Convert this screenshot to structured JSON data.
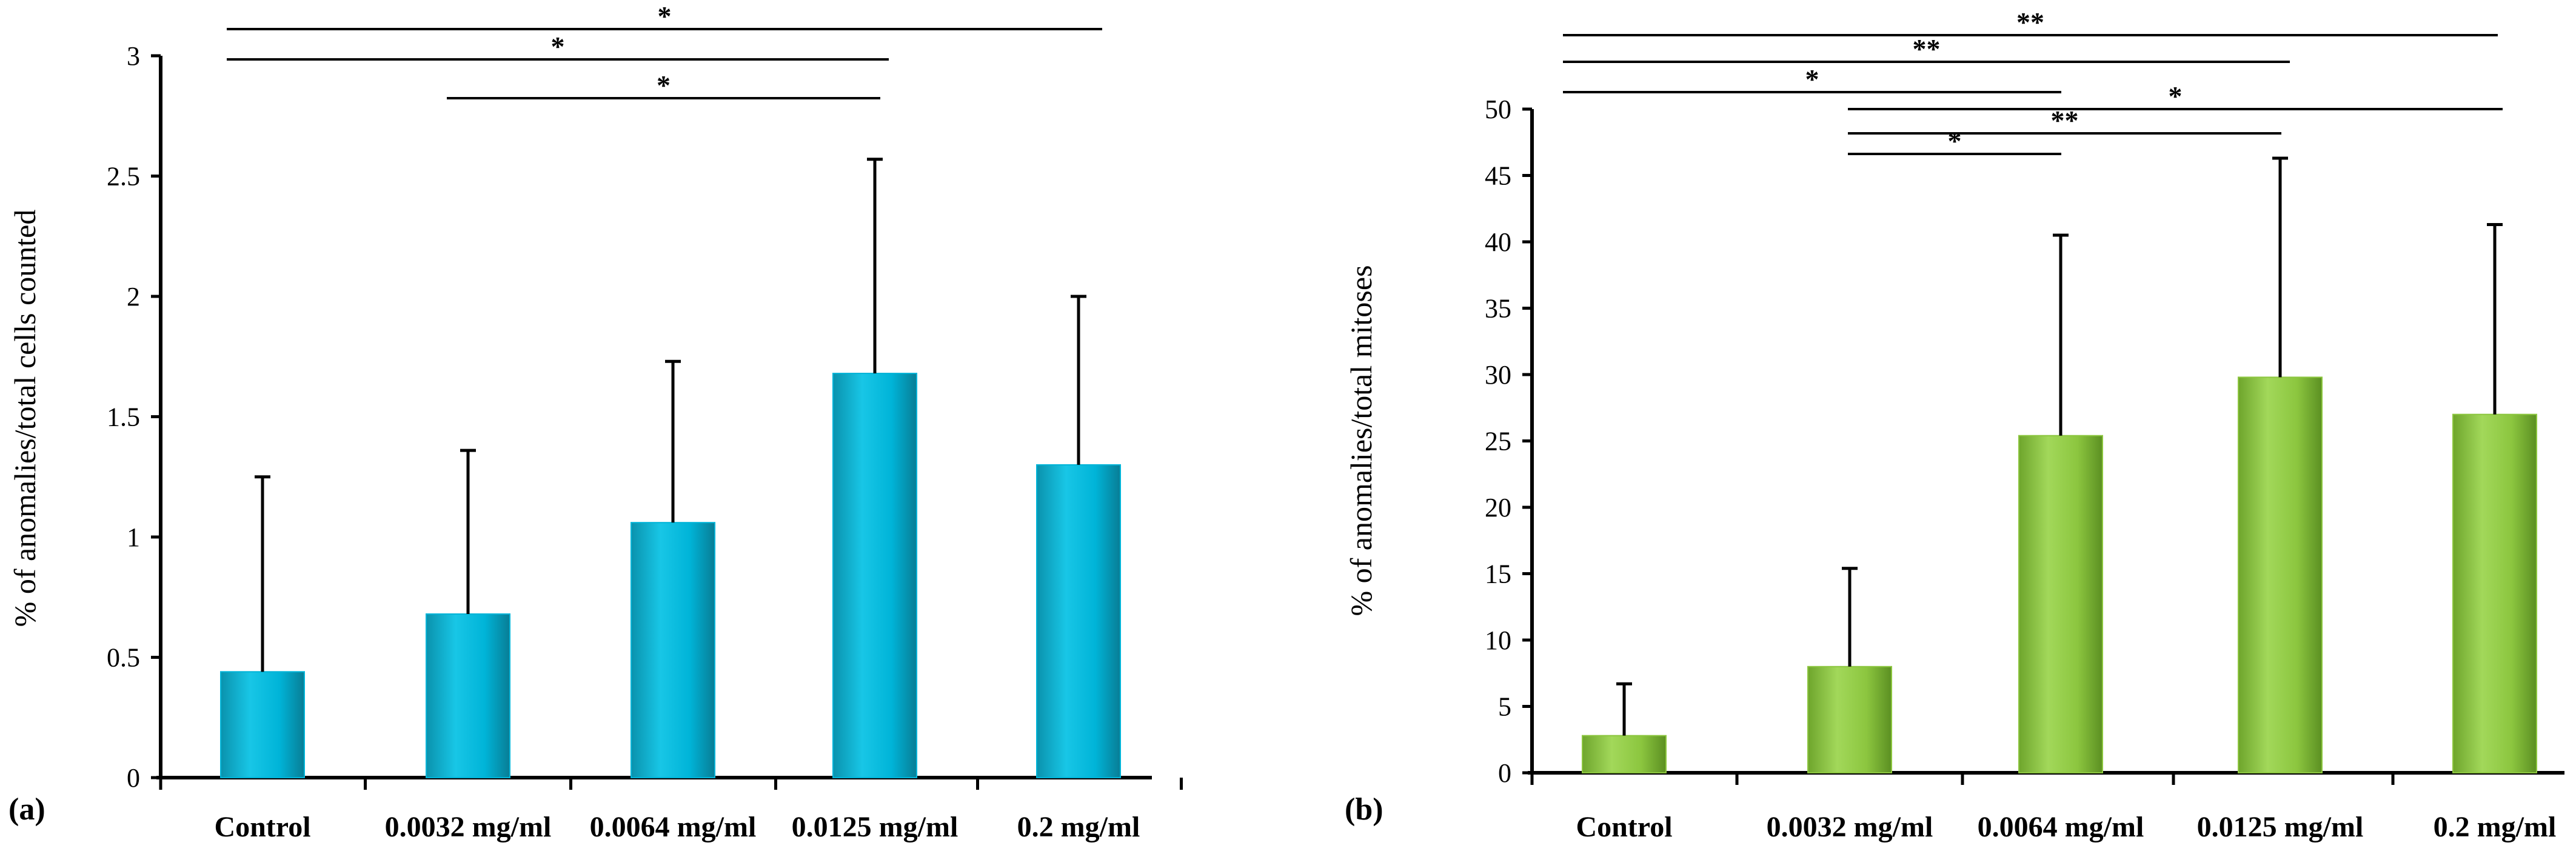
{
  "chart_data": [
    {
      "type": "bar",
      "panel_label": "(a)",
      "ylabel": "% of anomalies/total cells counted",
      "xlabel": "",
      "categories": [
        "Control",
        "0.0032 mg/ml",
        "0.0064 mg/ml",
        "0.0125 mg/ml",
        "0.2 mg/ml"
      ],
      "values": [
        0.44,
        0.68,
        1.06,
        1.68,
        1.3
      ],
      "errors": [
        0.81,
        0.68,
        0.67,
        0.89,
        0.7
      ],
      "ylim": [
        0,
        3
      ],
      "yticks": [
        0,
        0.5,
        1,
        1.5,
        2,
        2.5,
        3
      ],
      "ytick_labels": [
        "0",
        "0.5",
        "1",
        "1.5",
        "2",
        "2.5",
        "3"
      ],
      "color": "#00b4d8",
      "significance": [
        {
          "from": 0,
          "to": 4,
          "label": "*"
        },
        {
          "from": 0,
          "to": 3,
          "label": "*"
        },
        {
          "from": 1,
          "to": 3,
          "label": "*"
        }
      ]
    },
    {
      "type": "bar",
      "panel_label": "(b)",
      "ylabel": "% of anomalies/total  mitoses",
      "xlabel": "",
      "categories": [
        "Control",
        "0.0032 mg/ml",
        "0.0064 mg/ml",
        "0.0125 mg/ml",
        "0.2 mg/ml"
      ],
      "values": [
        2.8,
        8.0,
        25.4,
        29.8,
        27.0
      ],
      "errors": [
        3.9,
        7.4,
        15.1,
        16.5,
        14.3
      ],
      "ylim": [
        0,
        50
      ],
      "yticks": [
        0,
        5,
        10,
        15,
        20,
        25,
        30,
        35,
        40,
        45,
        50
      ],
      "ytick_labels": [
        "0",
        "5",
        "10",
        "15",
        "20",
        "25",
        "30",
        "35",
        "40",
        "45",
        "50"
      ],
      "color": "#8cc63f",
      "significance": [
        {
          "from": 0,
          "to": 4,
          "label": "**"
        },
        {
          "from": 0,
          "to": 3,
          "label": "**"
        },
        {
          "from": 0,
          "to": 2,
          "label": "*"
        },
        {
          "from": 1,
          "to": 4,
          "label": "*"
        },
        {
          "from": 1,
          "to": 3,
          "label": "**"
        },
        {
          "from": 1,
          "to": 2,
          "label": "*"
        }
      ]
    }
  ]
}
